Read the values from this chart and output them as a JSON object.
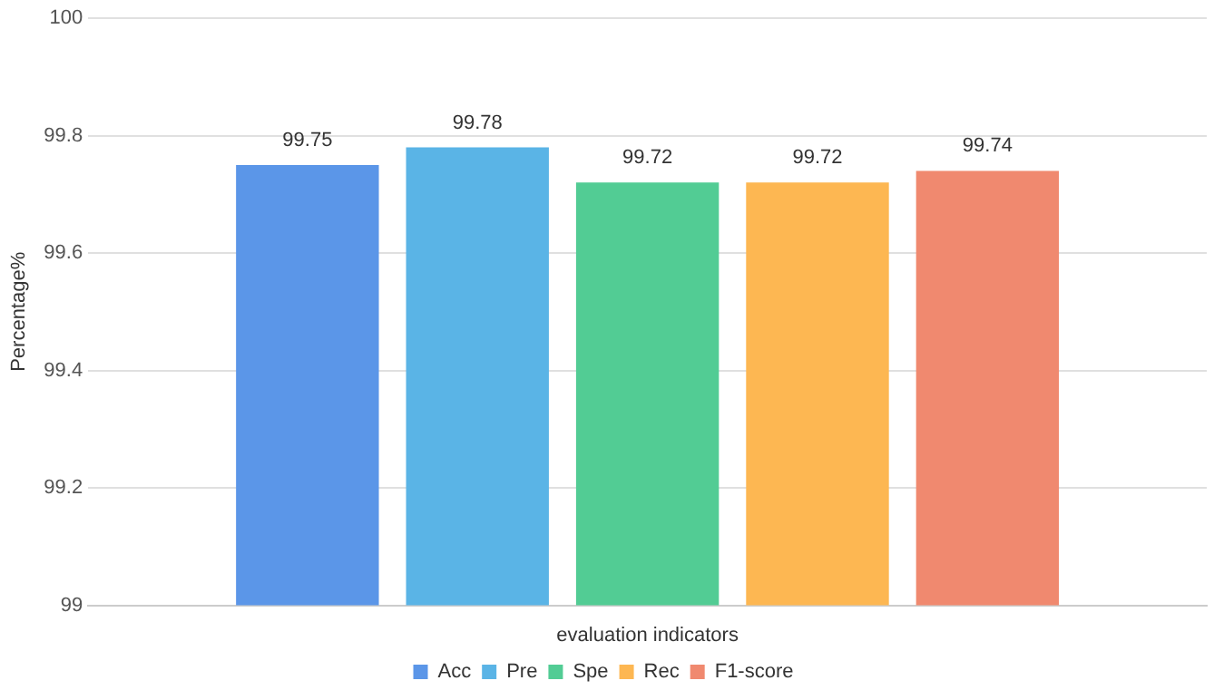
{
  "chart_data": {
    "type": "bar",
    "xlabel": "evaluation indicators",
    "ylabel": "Percentage%",
    "categories": [
      null
    ],
    "series": [
      {
        "name": "Acc",
        "color": "#5b96e8",
        "values": [
          99.75
        ]
      },
      {
        "name": "Pre",
        "color": "#5ab4e6",
        "values": [
          99.78
        ]
      },
      {
        "name": "Spe",
        "color": "#52cc94",
        "values": [
          99.72
        ]
      },
      {
        "name": "Rec",
        "color": "#fdb752",
        "values": [
          99.72
        ]
      },
      {
        "name": "F1-score",
        "color": "#f0896f",
        "values": [
          99.74
        ]
      }
    ],
    "ylim": [
      99,
      100
    ],
    "yticks": [
      99,
      99.2,
      99.4,
      99.6,
      99.8,
      100
    ],
    "grid": "y",
    "legend": "bottom",
    "data_labels": true
  }
}
